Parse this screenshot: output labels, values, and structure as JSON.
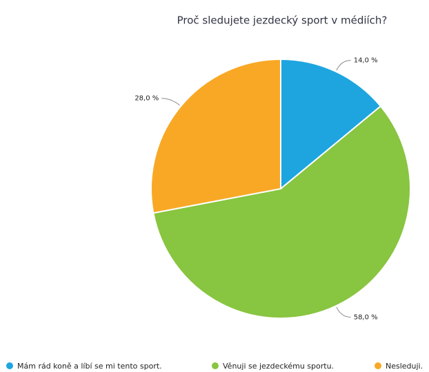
{
  "chart_data": {
    "type": "pie",
    "title": "Proč sledujete jezdecký sport v médiích?",
    "categories": [
      "Mám rád koně a líbí se mi tento sport.",
      "Věnuji se jezdeckému sportu.",
      "Nesleduji."
    ],
    "values": [
      14,
      58,
      28
    ],
    "value_labels": [
      "14,0 %",
      "58,0 %",
      "28,0 %"
    ],
    "colors": [
      "#1ea5e0",
      "#88c540",
      "#f9a825"
    ]
  }
}
